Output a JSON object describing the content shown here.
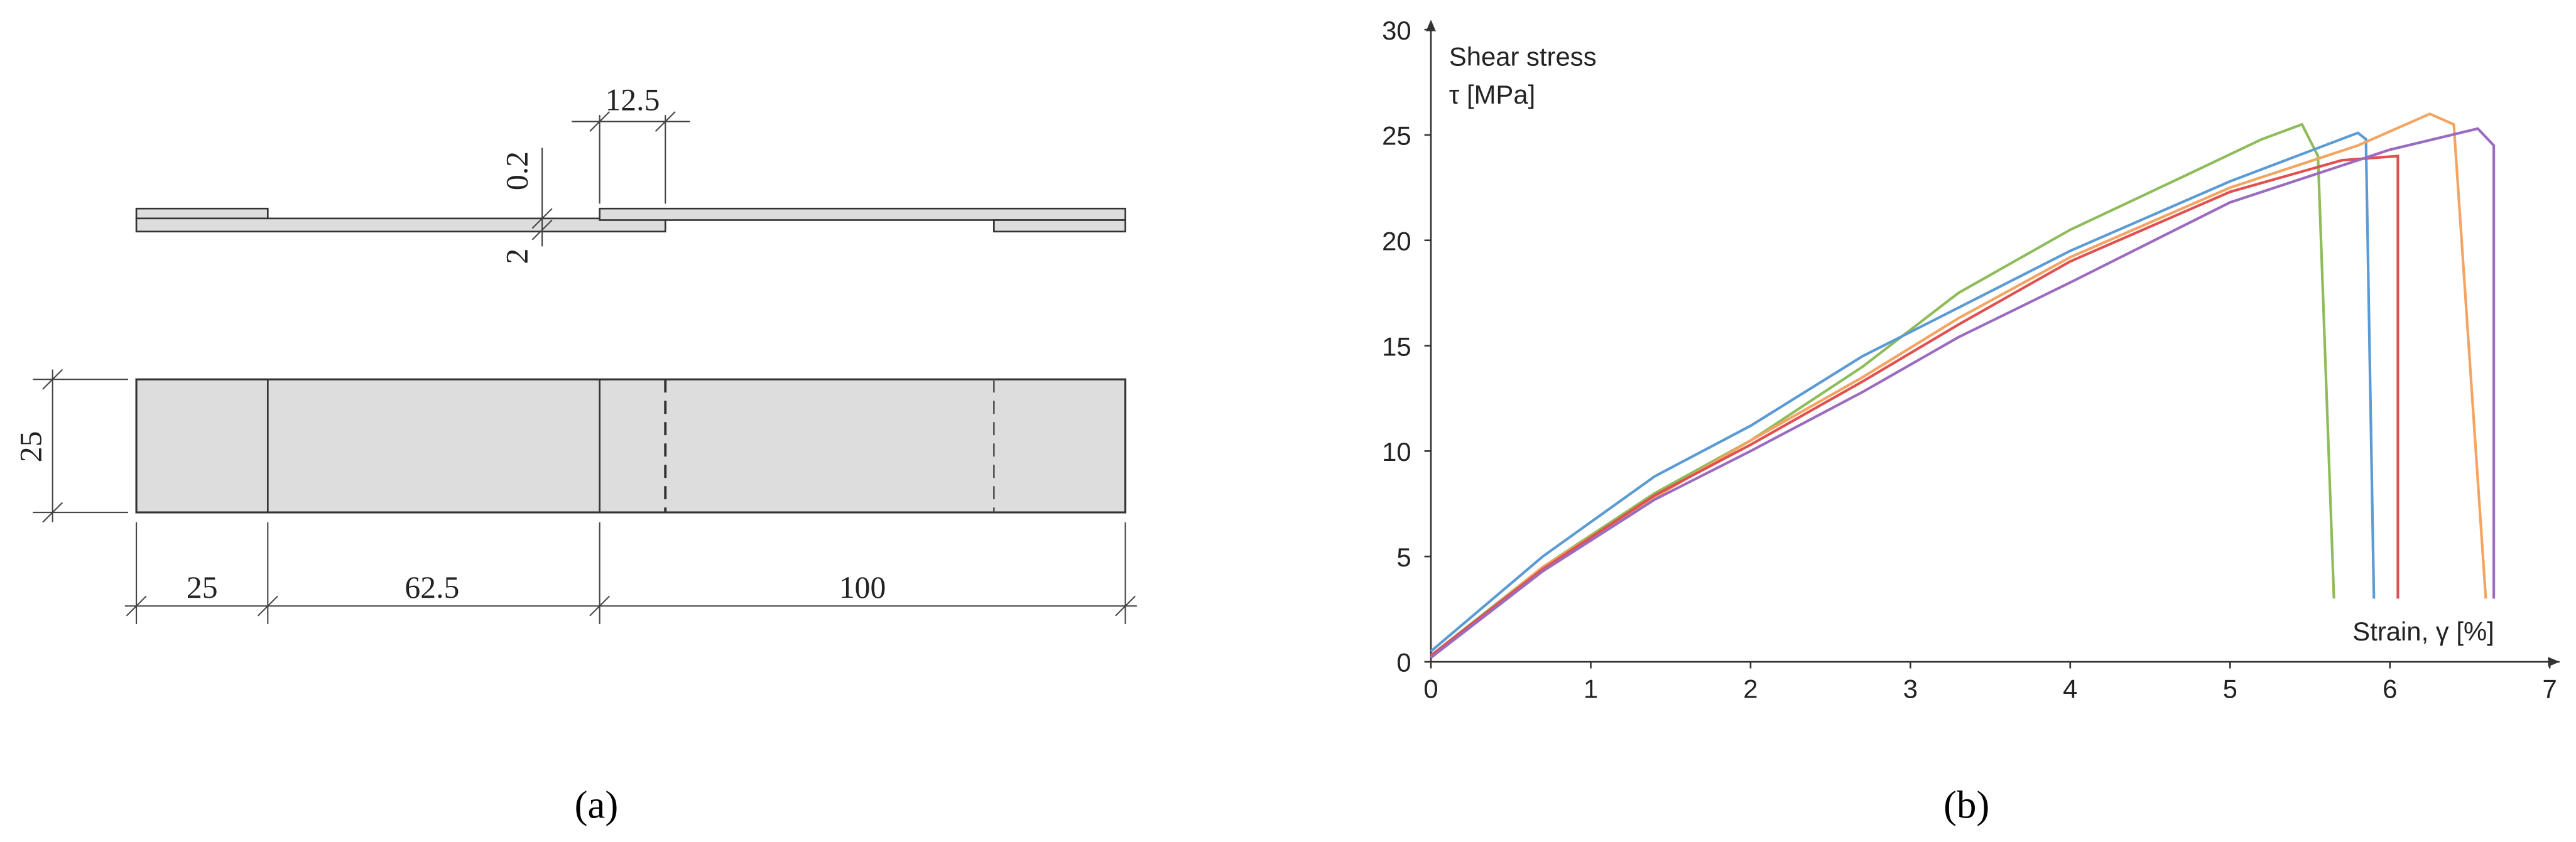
{
  "diagram": {
    "dimensions": {
      "overlap": "12.5",
      "adhesive": "0.2",
      "thickness": "2",
      "width": "25",
      "tab": "25",
      "free_length": "62.5",
      "plate": "100"
    },
    "caption": "(a)"
  },
  "chart_data": {
    "type": "line",
    "caption": "(b)",
    "y_label_line1": "Shear stress",
    "y_label_line2": "τ [MPa]",
    "x_label": "Strain, γ [%]",
    "xlim": [
      0,
      7
    ],
    "xticks": [
      0,
      1,
      2,
      3,
      4,
      5,
      6,
      7
    ],
    "ylim": [
      0,
      30
    ],
    "yticks": [
      0,
      5,
      10,
      15,
      20,
      25,
      30
    ],
    "series": [
      {
        "color": "#8fbc5a",
        "x": [
          0,
          0.7,
          1.4,
          2,
          2.7,
          3.3,
          4,
          4.7,
          5.2,
          5.45,
          5.55,
          5.65
        ],
        "values": [
          0.3,
          4.5,
          8,
          10.5,
          14,
          17.5,
          20.5,
          23,
          24.8,
          25.5,
          24,
          3
        ]
      },
      {
        "color": "#5b9bd5",
        "x": [
          0,
          0.7,
          1.4,
          2,
          2.7,
          3.3,
          4,
          5,
          5.8,
          5.85,
          5.9
        ],
        "values": [
          0.5,
          5,
          8.8,
          11.2,
          14.5,
          16.8,
          19.5,
          22.8,
          25.1,
          24.8,
          3
        ]
      },
      {
        "color": "#f4a460",
        "x": [
          0,
          0.7,
          1.4,
          2,
          2.7,
          3.3,
          4,
          5,
          5.8,
          6.25,
          6.4,
          6.6
        ],
        "values": [
          0.2,
          4.5,
          7.8,
          10.5,
          13.5,
          16.3,
          19.2,
          22.5,
          24.5,
          26,
          25.5,
          3
        ]
      },
      {
        "color": "#e05050",
        "x": [
          0,
          0.7,
          1.4,
          2,
          2.7,
          3.3,
          4,
          5,
          5.7,
          6.05,
          6.05
        ],
        "values": [
          0.3,
          4.4,
          7.9,
          10.3,
          13.3,
          16,
          19,
          22.3,
          23.8,
          24,
          3
        ]
      },
      {
        "color": "#9b6bbf",
        "x": [
          0,
          0.7,
          1.4,
          2,
          2.7,
          3.3,
          4,
          5,
          6,
          6.55,
          6.65,
          6.65
        ],
        "values": [
          0.2,
          4.3,
          7.7,
          10,
          12.8,
          15.4,
          18,
          21.8,
          24.3,
          25.3,
          24.5,
          3
        ]
      }
    ]
  }
}
